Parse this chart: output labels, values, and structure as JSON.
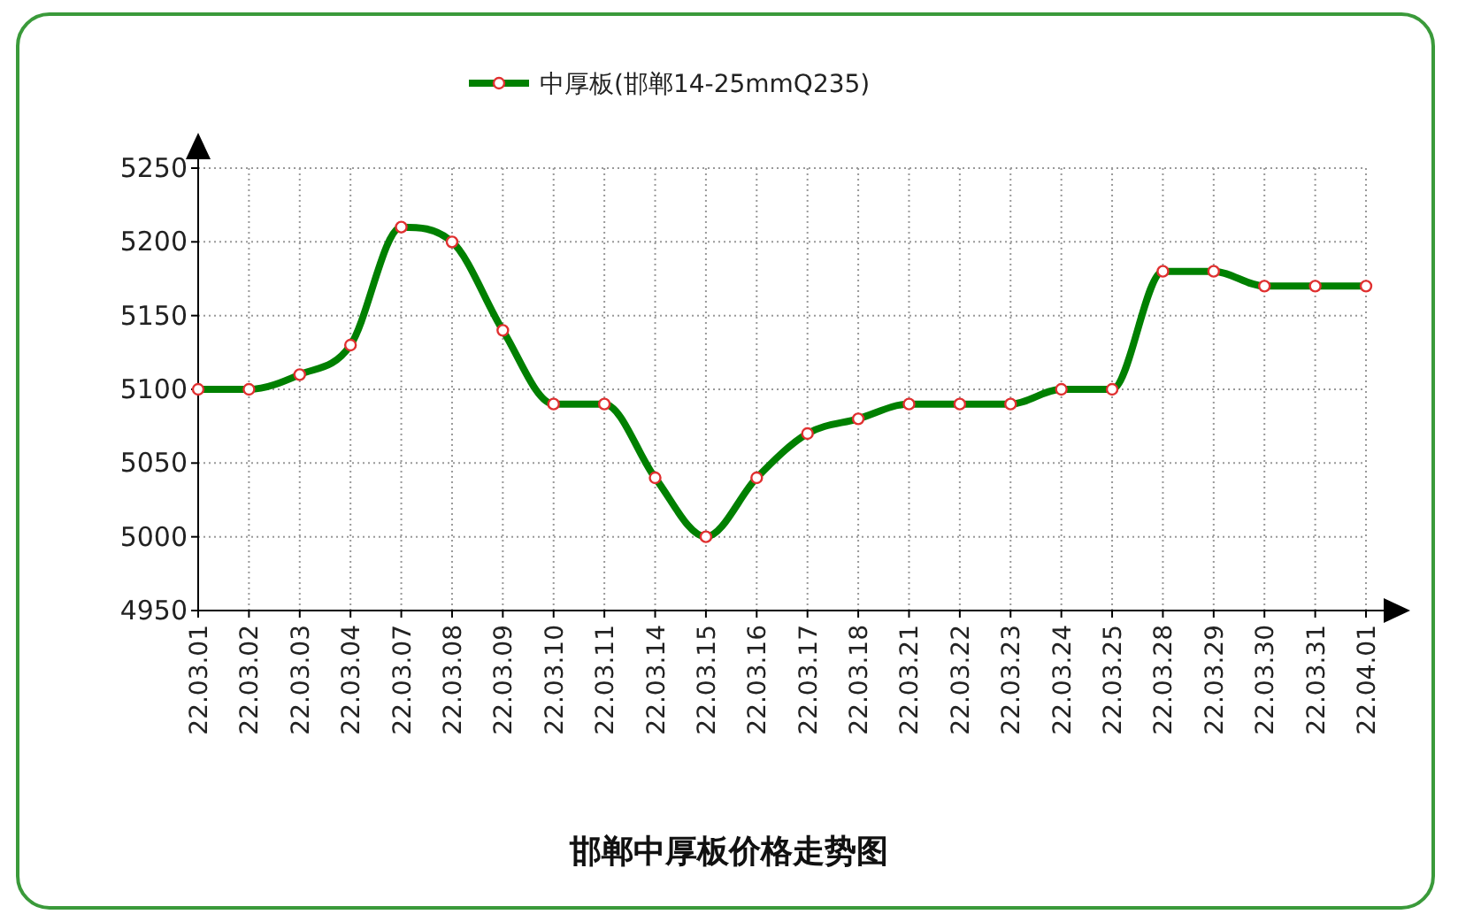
{
  "chart_data": {
    "type": "line",
    "title": "邯郸中厚板价格走势图",
    "categories": [
      "22.03.01",
      "22.03.02",
      "22.03.03",
      "22.03.04",
      "22.03.07",
      "22.03.08",
      "22.03.09",
      "22.03.10",
      "22.03.11",
      "22.03.14",
      "22.03.15",
      "22.03.16",
      "22.03.17",
      "22.03.18",
      "22.03.21",
      "22.03.22",
      "22.03.23",
      "22.03.24",
      "22.03.25",
      "22.03.28",
      "22.03.29",
      "22.03.30",
      "22.03.31",
      "22.04.01"
    ],
    "series": [
      {
        "name": "中厚板(邯郸14-25mmQ235)",
        "color": "#008000",
        "values": [
          5100,
          5100,
          5110,
          5130,
          5210,
          5200,
          5140,
          5090,
          5090,
          5040,
          5000,
          5040,
          5070,
          5080,
          5090,
          5090,
          5090,
          5100,
          5100,
          5180,
          5180,
          5170,
          5170,
          5170
        ]
      }
    ],
    "ylim": [
      4950,
      5250
    ],
    "yticks": [
      4950,
      5000,
      5050,
      5100,
      5150,
      5200,
      5250
    ],
    "grid": true,
    "legend": "top",
    "marker": "circle",
    "line_style": "solid"
  }
}
